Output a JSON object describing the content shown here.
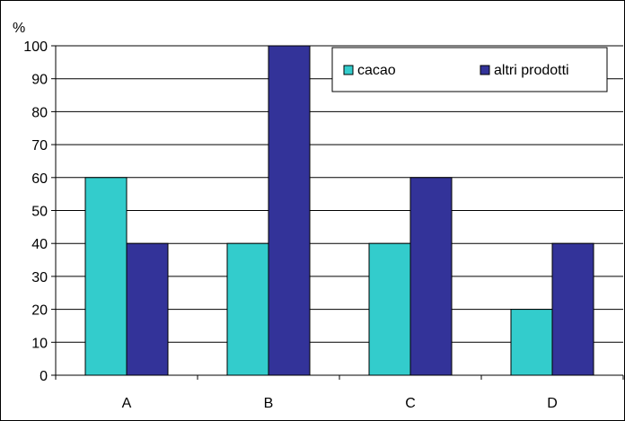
{
  "chart_data": {
    "type": "bar",
    "title": "",
    "xlabel": "",
    "ylabel": "%",
    "categories": [
      "A",
      "B",
      "C",
      "D"
    ],
    "series": [
      {
        "name": "cacao",
        "values": [
          60,
          40,
          40,
          20
        ],
        "color": "#33CCCC"
      },
      {
        "name": "altri prodotti",
        "values": [
          40,
          100,
          60,
          40
        ],
        "color": "#333399"
      }
    ],
    "ylim": [
      0,
      100
    ],
    "yticks": [
      0,
      10,
      20,
      30,
      40,
      50,
      60,
      70,
      80,
      90,
      100
    ],
    "grid": true,
    "legend_position": "top-right"
  }
}
